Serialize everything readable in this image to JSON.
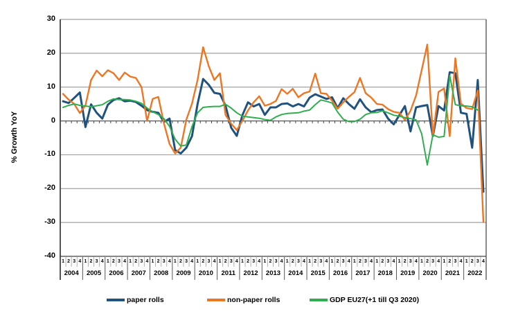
{
  "chart_data": {
    "type": "line",
    "title": "",
    "ylabel": "% Growth YoY",
    "ylim": [
      -40,
      30
    ],
    "yticks": [
      30,
      20,
      10,
      0,
      -10,
      -20,
      -30,
      -40
    ],
    "grid": "horizontal",
    "legend_position": "bottom",
    "x_axis": {
      "years": [
        "2004",
        "2005",
        "2006",
        "2007",
        "2008",
        "2009",
        "2010",
        "2011",
        "2012",
        "2013",
        "2014",
        "2015",
        "2016",
        "2017",
        "2018",
        "2019",
        "2020",
        "2021",
        "2022"
      ],
      "quarter_labels": [
        "1",
        "2",
        "3",
        "4"
      ]
    },
    "series": [
      {
        "name": "paper rolls",
        "color": "#20527F",
        "values": [
          5.8,
          5.3,
          6.8,
          8.4,
          -1.8,
          4.9,
          2.4,
          0.7,
          4.8,
          6.2,
          6.7,
          5.8,
          6.0,
          5.6,
          4.5,
          3.2,
          2.7,
          2.4,
          -0.3,
          0.7,
          -8.6,
          -9.6,
          -7.9,
          -4.5,
          5.0,
          12.4,
          10.7,
          8.3,
          8.0,
          4.5,
          -2.0,
          -4.4,
          1.7,
          5.5,
          4.3,
          5.0,
          1.8,
          4.0,
          4.0,
          5.0,
          5.2,
          4.3,
          5.0,
          4.3,
          6.9,
          7.9,
          7.2,
          6.5,
          7.0,
          3.8,
          6.7,
          5.0,
          3.6,
          6.4,
          4.0,
          2.6,
          3.2,
          3.4,
          0.7,
          -1.0,
          1.7,
          4.4,
          -3.1,
          4.0,
          4.4,
          4.7,
          -4.5,
          4.4,
          3.1,
          14.4,
          14.1,
          2.4,
          2.1,
          -7.9,
          12.1,
          -20.9
        ]
      },
      {
        "name": "non-paper rolls",
        "color": "#ED7623",
        "values": [
          8.0,
          6.3,
          5.0,
          2.3,
          4.6,
          12.1,
          14.9,
          13.2,
          15.0,
          14.1,
          12.1,
          14.3,
          13.1,
          12.7,
          10.0,
          0.0,
          6.5,
          7.1,
          -0.7,
          -6.8,
          -9.6,
          -7.9,
          0.4,
          5.1,
          12.1,
          21.8,
          16.2,
          12.1,
          14.1,
          1.8,
          -0.8,
          -2.7,
          0.0,
          3.1,
          5.5,
          7.3,
          4.5,
          5.0,
          5.9,
          9.4,
          8.0,
          9.5,
          7.0,
          8.2,
          8.7,
          14.0,
          8.2,
          8.0,
          6.0,
          3.6,
          5.5,
          7.1,
          8.5,
          12.7,
          8.2,
          6.9,
          5.0,
          4.8,
          3.5,
          2.7,
          2.4,
          0.3,
          3.0,
          7.5,
          15.0,
          22.6,
          -4.5,
          8.6,
          9.6,
          -4.5,
          18.5,
          5.1,
          3.8,
          3.5,
          9.0,
          -29.8
        ]
      },
      {
        "name": "GDP EU27(+1 till Q3 2020)",
        "color": "#2FAE4F",
        "values": [
          4.0,
          4.6,
          5.0,
          4.6,
          4.4,
          4.2,
          4.5,
          4.8,
          5.8,
          6.5,
          6.3,
          6.3,
          6.2,
          5.8,
          5.2,
          3.8,
          2.7,
          1.9,
          0.7,
          -1.6,
          -5.4,
          -7.4,
          -7.1,
          -1.7,
          2.4,
          4.0,
          4.2,
          4.3,
          4.3,
          4.9,
          3.8,
          2.4,
          1.4,
          1.2,
          1.0,
          0.8,
          0.4,
          0.2,
          1.2,
          1.9,
          2.2,
          2.3,
          2.4,
          2.9,
          3.2,
          4.8,
          6.2,
          5.8,
          5.3,
          2.6,
          0.5,
          -0.2,
          -0.2,
          0.5,
          1.9,
          2.4,
          2.5,
          3.0,
          2.4,
          1.7,
          1.4,
          1.0,
          0.7,
          0.3,
          -3.8,
          -13.0,
          -4.1,
          -4.8,
          -4.6,
          13.4,
          4.8,
          4.5,
          4.4,
          4.2,
          3.2,
          null
        ]
      }
    ],
    "colors": {
      "gridline": "#a0a0a0",
      "axis": "#404040",
      "zero_line": "#4d4d4d",
      "quarter_separator": "#b0b0b0",
      "year_separator": "#555555"
    }
  }
}
